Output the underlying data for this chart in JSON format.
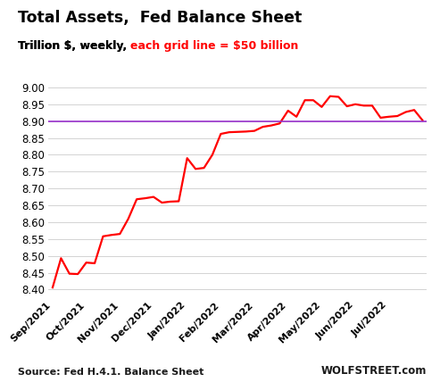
{
  "title": "Total Assets,  Fed Balance Sheet",
  "subtitle_black": "Trillion $, weekly, ",
  "subtitle_red": "each grid line = $50 billion",
  "source_left": "Source: Fed H.4.1. Balance Sheet",
  "source_right": "WOLFSTREET.com",
  "line_color": "#FF0000",
  "hline_color": "#9933CC",
  "hline_value": 8.9,
  "background_color": "#FFFFFF",
  "ylim": [
    8.375,
    9.01
  ],
  "yticks": [
    8.4,
    8.45,
    8.5,
    8.55,
    8.6,
    8.65,
    8.7,
    8.75,
    8.8,
    8.85,
    8.9,
    8.95,
    9.0
  ],
  "x_labels": [
    "Sep/2021",
    "Oct/2021",
    "Nov/2021",
    "Dec/2021",
    "Jan/2022",
    "Feb/2022",
    "Mar/2022",
    "Apr/2022",
    "May/2022",
    "Jun/2022",
    "Jul/2022"
  ],
  "monthly_positions": [
    0,
    4,
    8,
    12,
    16,
    20,
    24,
    28,
    32,
    36,
    40
  ],
  "values": [
    8.406,
    8.493,
    8.447,
    8.446,
    8.48,
    8.478,
    8.558,
    8.562,
    8.565,
    8.61,
    8.668,
    8.671,
    8.675,
    8.658,
    8.661,
    8.662,
    8.79,
    8.758,
    8.761,
    8.8,
    8.862,
    8.867,
    8.868,
    8.869,
    8.871,
    8.883,
    8.887,
    8.893,
    8.931,
    8.913,
    8.962,
    8.962,
    8.942,
    8.974,
    8.972,
    8.944,
    8.95,
    8.946,
    8.946,
    8.91,
    8.913,
    8.915,
    8.927,
    8.933,
    8.902
  ]
}
